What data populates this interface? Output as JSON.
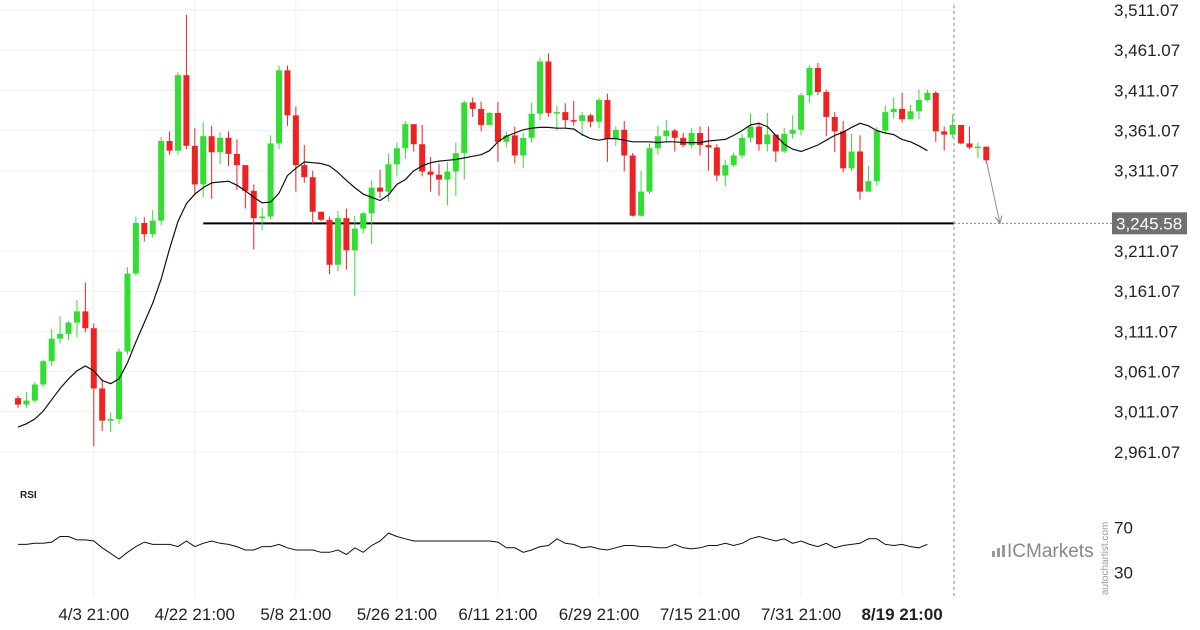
{
  "brand": {
    "name": "ICMarkets",
    "watermark": "autochartist.com"
  },
  "colors": {
    "up": "#33dd33",
    "down": "#ee2222",
    "line": "#111111",
    "level": "#000000",
    "tag_bg": "#707070"
  },
  "chart_data": {
    "type": "candlestick",
    "ylim": [
      2936.07,
      3511.07
    ],
    "y_ticks": [
      "3,511.07",
      "3,461.07",
      "3,411.07",
      "3,361.07",
      "3,311.07",
      "3,211.07",
      "3,161.07",
      "3,111.07",
      "3,061.07",
      "3,011.07",
      "2,961.07"
    ],
    "x_ticks": [
      {
        "label": "4/3 21:00",
        "index": 9
      },
      {
        "label": "4/22 21:00",
        "index": 21
      },
      {
        "label": "5/8 21:00",
        "index": 33
      },
      {
        "label": "5/26 21:00",
        "index": 45
      },
      {
        "label": "6/11 21:00",
        "index": 57
      },
      {
        "label": "6/29 21:00",
        "index": 69
      },
      {
        "label": "7/15 21:00",
        "index": 81
      },
      {
        "label": "7/31 21:00",
        "index": 93
      },
      {
        "label": "8/19 21:00",
        "index": 105
      }
    ],
    "support_level": 3245.58,
    "support_label": "3,245.58",
    "forecast_target": 3245.58,
    "candles": [
      [
        3028,
        3020,
        3031,
        3016
      ],
      [
        3020,
        3025,
        3036,
        3016
      ],
      [
        3025,
        3045,
        3048,
        3022
      ],
      [
        3045,
        3074,
        3076,
        3042
      ],
      [
        3074,
        3102,
        3114,
        3068
      ],
      [
        3102,
        3108,
        3130,
        3096
      ],
      [
        3108,
        3122,
        3124,
        3100
      ],
      [
        3122,
        3136,
        3150,
        3104
      ],
      [
        3136,
        3115,
        3172,
        3110
      ],
      [
        3115,
        3040,
        3121,
        2968
      ],
      [
        3040,
        3000,
        3052,
        2987
      ],
      [
        3000,
        3002,
        3010,
        2986
      ],
      [
        3002,
        3086,
        3090,
        2996
      ],
      [
        3086,
        3183,
        3191,
        3082
      ],
      [
        3183,
        3246,
        3254,
        3180
      ],
      [
        3246,
        3232,
        3253,
        3223
      ],
      [
        3232,
        3249,
        3262,
        3228
      ],
      [
        3249,
        3348,
        3353,
        3243
      ],
      [
        3348,
        3336,
        3360,
        3331
      ],
      [
        3336,
        3430,
        3434,
        3331
      ],
      [
        3430,
        3342,
        3505,
        3338
      ],
      [
        3342,
        3294,
        3364,
        3280
      ],
      [
        3294,
        3354,
        3372,
        3278
      ],
      [
        3354,
        3334,
        3367,
        3276
      ],
      [
        3334,
        3352,
        3359,
        3319
      ],
      [
        3352,
        3332,
        3360,
        3317
      ],
      [
        3332,
        3318,
        3350,
        3287
      ],
      [
        3318,
        3286,
        3292,
        3264
      ],
      [
        3286,
        3252,
        3294,
        3213
      ],
      [
        3252,
        3254,
        3265,
        3237
      ],
      [
        3254,
        3345,
        3355,
        3250
      ],
      [
        3345,
        3436,
        3442,
        3338
      ],
      [
        3436,
        3380,
        3442,
        3367
      ],
      [
        3380,
        3318,
        3391,
        3285
      ],
      [
        3318,
        3303,
        3343,
        3296
      ],
      [
        3303,
        3260,
        3311,
        3244
      ],
      [
        3260,
        3250,
        3260,
        3248
      ],
      [
        3250,
        3194,
        3254,
        3182
      ],
      [
        3194,
        3252,
        3261,
        3186
      ],
      [
        3252,
        3212,
        3264,
        3188
      ],
      [
        3212,
        3239,
        3255,
        3155
      ],
      [
        3239,
        3258,
        3260,
        3233
      ],
      [
        3258,
        3290,
        3299,
        3220
      ],
      [
        3290,
        3285,
        3312,
        3277
      ],
      [
        3285,
        3319,
        3332,
        3273
      ],
      [
        3319,
        3339,
        3346,
        3304
      ],
      [
        3339,
        3369,
        3373,
        3326
      ],
      [
        3369,
        3344,
        3364,
        3335
      ],
      [
        3344,
        3310,
        3368,
        3304
      ],
      [
        3310,
        3306,
        3328,
        3285
      ],
      [
        3306,
        3300,
        3320,
        3280
      ],
      [
        3300,
        3310,
        3322,
        3268
      ],
      [
        3310,
        3333,
        3346,
        3280
      ],
      [
        3333,
        3396,
        3398,
        3300
      ],
      [
        3396,
        3388,
        3402,
        3378
      ],
      [
        3388,
        3368,
        3397,
        3360
      ],
      [
        3368,
        3383,
        3384,
        3372
      ],
      [
        3383,
        3347,
        3397,
        3322
      ],
      [
        3347,
        3355,
        3360,
        3340
      ],
      [
        3355,
        3330,
        3366,
        3320
      ],
      [
        3330,
        3352,
        3358,
        3314
      ],
      [
        3352,
        3382,
        3396,
        3346
      ],
      [
        3382,
        3447,
        3452,
        3374
      ],
      [
        3447,
        3383,
        3457,
        3378
      ],
      [
        3383,
        3384,
        3392,
        3361
      ],
      [
        3384,
        3374,
        3395,
        3364
      ],
      [
        3374,
        3373,
        3398,
        3367
      ],
      [
        3373,
        3380,
        3384,
        3354
      ],
      [
        3380,
        3372,
        3382,
        3365
      ],
      [
        3372,
        3399,
        3402,
        3364
      ],
      [
        3399,
        3351,
        3407,
        3322
      ],
      [
        3351,
        3362,
        3366,
        3342
      ],
      [
        3362,
        3330,
        3373,
        3310
      ],
      [
        3330,
        3255,
        3333,
        3254
      ],
      [
        3255,
        3285,
        3311,
        3254
      ],
      [
        3285,
        3339,
        3345,
        3282
      ],
      [
        3339,
        3354,
        3367,
        3331
      ],
      [
        3354,
        3361,
        3374,
        3347
      ],
      [
        3361,
        3352,
        3363,
        3335
      ],
      [
        3352,
        3343,
        3358,
        3340
      ],
      [
        3343,
        3358,
        3364,
        3339
      ],
      [
        3358,
        3343,
        3366,
        3330
      ],
      [
        3343,
        3340,
        3366,
        3311
      ],
      [
        3340,
        3305,
        3344,
        3298
      ],
      [
        3305,
        3318,
        3325,
        3292
      ],
      [
        3318,
        3330,
        3334,
        3316
      ],
      [
        3330,
        3352,
        3357,
        3326
      ],
      [
        3352,
        3366,
        3382,
        3346
      ],
      [
        3366,
        3344,
        3371,
        3336
      ],
      [
        3344,
        3356,
        3383,
        3335
      ],
      [
        3356,
        3335,
        3356,
        3322
      ],
      [
        3335,
        3357,
        3364,
        3333
      ],
      [
        3357,
        3362,
        3380,
        3351
      ],
      [
        3362,
        3405,
        3408,
        3355
      ],
      [
        3405,
        3439,
        3442,
        3396
      ],
      [
        3439,
        3409,
        3445,
        3405
      ],
      [
        3409,
        3378,
        3412,
        3354
      ],
      [
        3378,
        3360,
        3384,
        3334
      ],
      [
        3360,
        3314,
        3373,
        3309
      ],
      [
        3314,
        3335,
        3357,
        3311
      ],
      [
        3335,
        3285,
        3355,
        3275
      ],
      [
        3285,
        3298,
        3317,
        3285
      ],
      [
        3298,
        3361,
        3365,
        3292
      ],
      [
        3361,
        3384,
        3392,
        3357
      ],
      [
        3384,
        3388,
        3402,
        3376
      ],
      [
        3388,
        3375,
        3408,
        3371
      ],
      [
        3375,
        3385,
        3393,
        3381
      ],
      [
        3385,
        3399,
        3412,
        3375
      ],
      [
        3399,
        3408,
        3412,
        3397
      ],
      [
        3408,
        3360,
        3410,
        3347
      ],
      [
        3360,
        3356,
        3366,
        3336
      ],
      [
        3356,
        3368,
        3381,
        3352
      ],
      [
        3368,
        3345,
        3367,
        3344
      ],
      [
        3345,
        3340,
        3366,
        3338
      ],
      [
        3340,
        3341,
        3346,
        3327
      ],
      [
        3341,
        3324,
        3341,
        3320
      ]
    ],
    "ma": [
      2992,
      2996,
      3002,
      3012,
      3026,
      3040,
      3052,
      3062,
      3068,
      3062,
      3050,
      3046,
      3052,
      3072,
      3098,
      3122,
      3146,
      3176,
      3214,
      3248,
      3270,
      3282,
      3290,
      3296,
      3297,
      3298,
      3293,
      3286,
      3278,
      3271,
      3272,
      3283,
      3305,
      3314,
      3322,
      3321,
      3320,
      3317,
      3309,
      3299,
      3290,
      3282,
      3278,
      3274,
      3281,
      3294,
      3300,
      3311,
      3317,
      3321,
      3323,
      3324,
      3325,
      3327,
      3329,
      3331,
      3336,
      3347,
      3354,
      3358,
      3362,
      3364,
      3365,
      3365,
      3364,
      3364,
      3363,
      3356,
      3351,
      3349,
      3351,
      3351,
      3349,
      3347,
      3347,
      3347,
      3346,
      3347,
      3347,
      3346,
      3346,
      3346,
      3348,
      3349,
      3350,
      3355,
      3361,
      3368,
      3370,
      3366,
      3355,
      3344,
      3338,
      3335,
      3339,
      3343,
      3349,
      3355,
      3359,
      3365,
      3370,
      3367,
      3361,
      3358,
      3356,
      3350,
      3347,
      3342,
      3336
    ],
    "indicator": {
      "name": "RSI",
      "ticks": [
        "70",
        "30"
      ],
      "ylim": [
        10,
        90
      ],
      "values": [
        55,
        55,
        56,
        56,
        57,
        62,
        62,
        59,
        59,
        58,
        52,
        47,
        42,
        48,
        53,
        57,
        55,
        55,
        55,
        53,
        58,
        53,
        56,
        58,
        56,
        55,
        53,
        50,
        50,
        53,
        53,
        55,
        52,
        50,
        50,
        50,
        48,
        48,
        50,
        46,
        52,
        48,
        54,
        58,
        65,
        62,
        60,
        58,
        58,
        58,
        58,
        58,
        58,
        58,
        58,
        58,
        58,
        57,
        52,
        52,
        48,
        50,
        53,
        54,
        60,
        56,
        55,
        52,
        53,
        51,
        50,
        52,
        54,
        54,
        53,
        53,
        52,
        52,
        55,
        52,
        51,
        52,
        54,
        54,
        56,
        54,
        56,
        60,
        62,
        60,
        58,
        60,
        56,
        58,
        55,
        53,
        56,
        52,
        54,
        55,
        56,
        60,
        60,
        55,
        54,
        55,
        53,
        52,
        55
      ]
    }
  }
}
